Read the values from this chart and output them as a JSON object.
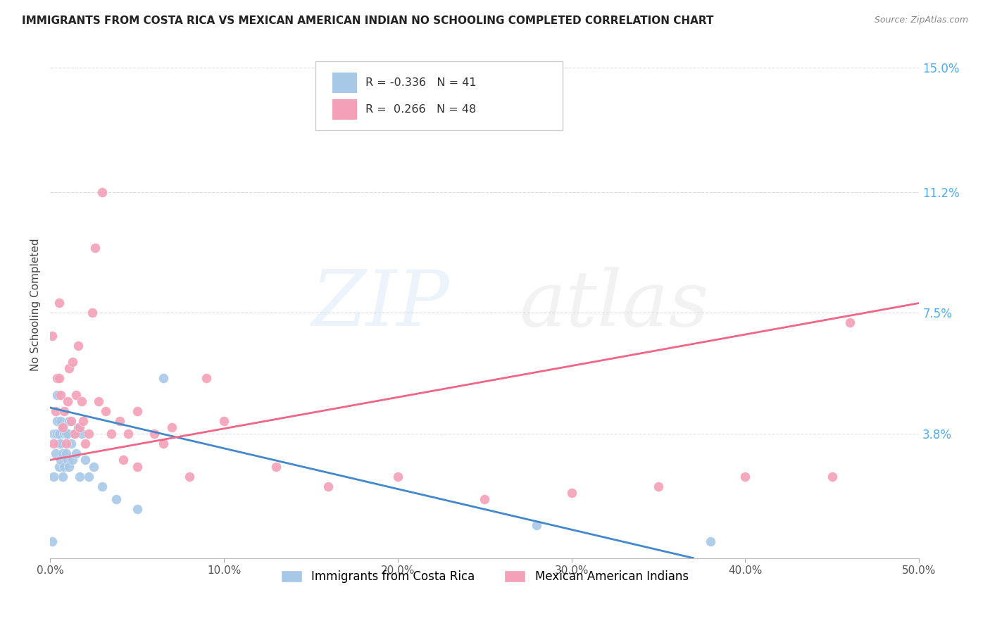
{
  "title": "IMMIGRANTS FROM COSTA RICA VS MEXICAN AMERICAN INDIAN NO SCHOOLING COMPLETED CORRELATION CHART",
  "source": "Source: ZipAtlas.com",
  "ylabel": "No Schooling Completed",
  "ytick_labels": [
    "3.8%",
    "7.5%",
    "11.2%",
    "15.0%"
  ],
  "ytick_values": [
    0.038,
    0.075,
    0.112,
    0.15
  ],
  "xtick_positions": [
    0.0,
    0.1,
    0.2,
    0.3,
    0.4,
    0.5
  ],
  "xtick_labels": [
    "0.0%",
    "10.0%",
    "20.0%",
    "30.0%",
    "40.0%",
    "50.0%"
  ],
  "xlim": [
    0.0,
    0.5
  ],
  "ylim": [
    0.0,
    0.155
  ],
  "legend1_label": "Immigrants from Costa Rica",
  "legend2_label": "Mexican American Indians",
  "r1": -0.336,
  "n1": 41,
  "r2": 0.266,
  "n2": 48,
  "color1": "#a8c8e8",
  "color2": "#f4a0b8",
  "trendline1_color": "#4488cc",
  "trendline2_color": "#ee6688",
  "background_color": "#ffffff",
  "grid_color": "#dddddd",
  "title_color": "#222222",
  "source_color": "#888888",
  "tick_color": "#555555",
  "right_tick_color": "#55aaee",
  "scatter1_x": [
    0.001,
    0.002,
    0.002,
    0.003,
    0.003,
    0.004,
    0.004,
    0.004,
    0.005,
    0.005,
    0.005,
    0.006,
    0.006,
    0.006,
    0.007,
    0.007,
    0.007,
    0.008,
    0.008,
    0.009,
    0.009,
    0.01,
    0.01,
    0.011,
    0.011,
    0.012,
    0.013,
    0.014,
    0.015,
    0.016,
    0.017,
    0.018,
    0.02,
    0.022,
    0.025,
    0.03,
    0.038,
    0.05,
    0.065,
    0.28,
    0.38
  ],
  "scatter1_y": [
    0.005,
    0.025,
    0.038,
    0.032,
    0.038,
    0.038,
    0.042,
    0.05,
    0.028,
    0.035,
    0.038,
    0.03,
    0.035,
    0.042,
    0.025,
    0.032,
    0.04,
    0.028,
    0.038,
    0.032,
    0.038,
    0.03,
    0.038,
    0.028,
    0.042,
    0.035,
    0.03,
    0.038,
    0.032,
    0.04,
    0.025,
    0.038,
    0.03,
    0.025,
    0.028,
    0.022,
    0.018,
    0.015,
    0.055,
    0.01,
    0.005
  ],
  "scatter2_x": [
    0.001,
    0.002,
    0.003,
    0.004,
    0.005,
    0.005,
    0.006,
    0.007,
    0.008,
    0.009,
    0.01,
    0.011,
    0.012,
    0.013,
    0.014,
    0.015,
    0.016,
    0.017,
    0.018,
    0.019,
    0.02,
    0.022,
    0.024,
    0.026,
    0.028,
    0.03,
    0.032,
    0.035,
    0.04,
    0.042,
    0.045,
    0.05,
    0.06,
    0.07,
    0.09,
    0.1,
    0.13,
    0.16,
    0.2,
    0.25,
    0.3,
    0.35,
    0.4,
    0.45,
    0.46,
    0.05,
    0.065,
    0.08
  ],
  "scatter2_y": [
    0.068,
    0.035,
    0.045,
    0.055,
    0.055,
    0.078,
    0.05,
    0.04,
    0.045,
    0.035,
    0.048,
    0.058,
    0.042,
    0.06,
    0.038,
    0.05,
    0.065,
    0.04,
    0.048,
    0.042,
    0.035,
    0.038,
    0.075,
    0.095,
    0.048,
    0.112,
    0.045,
    0.038,
    0.042,
    0.03,
    0.038,
    0.045,
    0.038,
    0.04,
    0.055,
    0.042,
    0.028,
    0.022,
    0.025,
    0.018,
    0.02,
    0.022,
    0.025,
    0.025,
    0.072,
    0.028,
    0.035,
    0.025
  ],
  "trendline1_x0": 0.0,
  "trendline1_x1": 0.37,
  "trendline1_y0": 0.046,
  "trendline1_y1": 0.0,
  "trendline2_x0": 0.0,
  "trendline2_x1": 0.5,
  "trendline2_y0": 0.03,
  "trendline2_y1": 0.078
}
